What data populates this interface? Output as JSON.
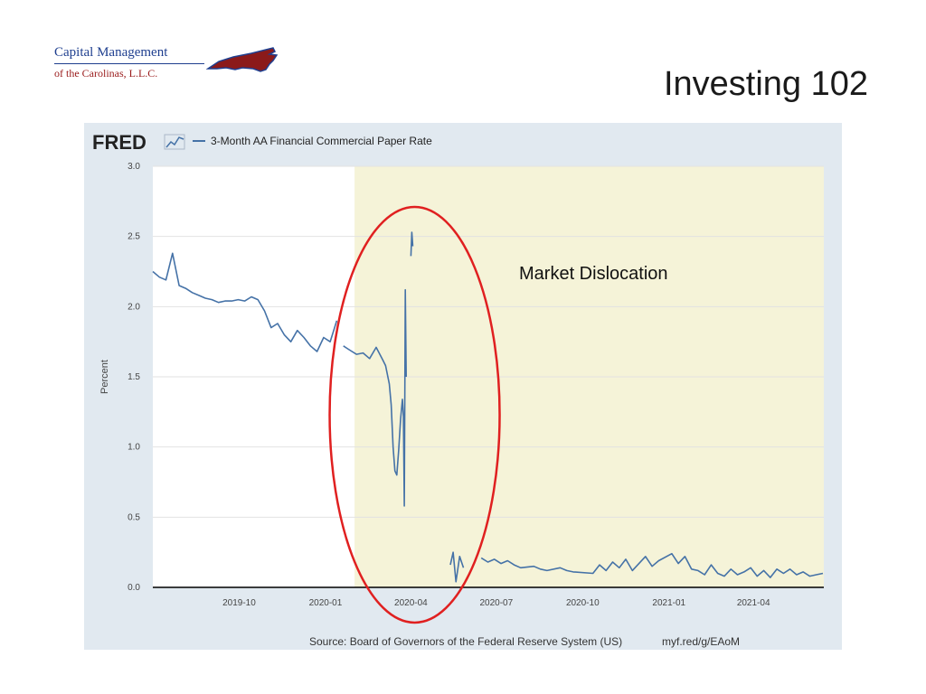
{
  "logo": {
    "line1": "Capital Management",
    "line2": "of the Carolinas, L.L.C."
  },
  "slide": {
    "title": "Investing 102"
  },
  "chart_data": {
    "type": "line",
    "brand": "FRED",
    "title": "",
    "xlabel": "",
    "ylabel": "Percent",
    "ylim": [
      0,
      3
    ],
    "yticks": [
      "0.0",
      "0.5",
      "1.0",
      "1.5",
      "2.0",
      "2.5",
      "3.0"
    ],
    "xticks": [
      "2019-10",
      "2020-01",
      "2020-04",
      "2020-07",
      "2020-10",
      "2021-01",
      "2021-04"
    ],
    "grid": true,
    "legend": "top-left",
    "recession_shading": {
      "start": "2020-02",
      "end": "2021-06",
      "color": "#f5f3d8"
    },
    "series": [
      {
        "name": "3-Month AA Financial Commercial Paper Rate",
        "color": "#4572a7",
        "segments": [
          [
            [
              "2019-07-01",
              2.25
            ],
            [
              "2019-07-08",
              2.21
            ],
            [
              "2019-07-15",
              2.19
            ],
            [
              "2019-07-22",
              2.38
            ],
            [
              "2019-07-29",
              2.15
            ],
            [
              "2019-08-05",
              2.13
            ],
            [
              "2019-08-12",
              2.1
            ],
            [
              "2019-08-19",
              2.08
            ],
            [
              "2019-08-26",
              2.06
            ],
            [
              "2019-09-02",
              2.05
            ],
            [
              "2019-09-09",
              2.03
            ],
            [
              "2019-09-16",
              2.04
            ],
            [
              "2019-09-23",
              2.04
            ],
            [
              "2019-09-30",
              2.05
            ],
            [
              "2019-10-07",
              2.04
            ],
            [
              "2019-10-14",
              2.07
            ],
            [
              "2019-10-21",
              2.05
            ],
            [
              "2019-10-28",
              1.97
            ],
            [
              "2019-11-04",
              1.85
            ],
            [
              "2019-11-11",
              1.88
            ],
            [
              "2019-11-18",
              1.8
            ],
            [
              "2019-11-25",
              1.75
            ],
            [
              "2019-12-02",
              1.83
            ],
            [
              "2019-12-09",
              1.78
            ],
            [
              "2019-12-16",
              1.72
            ],
            [
              "2019-12-23",
              1.68
            ],
            [
              "2019-12-30",
              1.78
            ],
            [
              "2020-01-06",
              1.75
            ],
            [
              "2020-01-13",
              1.9
            ]
          ],
          [
            [
              "2020-01-20",
              1.72
            ],
            [
              "2020-01-27",
              1.69
            ],
            [
              "2020-02-03",
              1.66
            ],
            [
              "2020-02-10",
              1.67
            ],
            [
              "2020-02-17",
              1.63
            ],
            [
              "2020-02-24",
              1.71
            ],
            [
              "2020-03-02",
              1.62
            ],
            [
              "2020-03-05",
              1.58
            ],
            [
              "2020-03-09",
              1.45
            ],
            [
              "2020-03-11",
              1.3
            ],
            [
              "2020-03-13",
              1.0
            ],
            [
              "2020-03-15",
              0.83
            ],
            [
              "2020-03-17",
              0.8
            ],
            [
              "2020-03-19",
              0.98
            ],
            [
              "2020-03-21",
              1.2
            ],
            [
              "2020-03-23",
              1.34
            ],
            [
              "2020-03-24",
              1.22
            ],
            [
              "2020-03-25",
              0.58
            ],
            [
              "2020-03-26",
              2.12
            ],
            [
              "2020-03-27",
              1.5
            ]
          ],
          [
            [
              "2020-04-01",
              2.36
            ],
            [
              "2020-04-02",
              2.53
            ],
            [
              "2020-04-03",
              2.43
            ]
          ],
          [
            [
              "2020-05-13",
              0.16
            ],
            [
              "2020-05-16",
              0.25
            ],
            [
              "2020-05-19",
              0.04
            ],
            [
              "2020-05-23",
              0.22
            ],
            [
              "2020-05-27",
              0.14
            ]
          ],
          [
            [
              "2020-06-15",
              0.21
            ],
            [
              "2020-06-22",
              0.18
            ],
            [
              "2020-06-29",
              0.2
            ],
            [
              "2020-07-06",
              0.17
            ],
            [
              "2020-07-13",
              0.19
            ],
            [
              "2020-07-20",
              0.16
            ],
            [
              "2020-07-27",
              0.14
            ],
            [
              "2020-08-10",
              0.15
            ],
            [
              "2020-08-17",
              0.13
            ],
            [
              "2020-08-24",
              0.12
            ],
            [
              "2020-09-07",
              0.14
            ],
            [
              "2020-09-14",
              0.12
            ],
            [
              "2020-09-21",
              0.11
            ],
            [
              "2020-10-12",
              0.1
            ],
            [
              "2020-10-19",
              0.16
            ],
            [
              "2020-10-26",
              0.12
            ],
            [
              "2020-11-02",
              0.18
            ],
            [
              "2020-11-09",
              0.14
            ],
            [
              "2020-11-16",
              0.2
            ],
            [
              "2020-11-23",
              0.12
            ],
            [
              "2020-12-07",
              0.22
            ],
            [
              "2020-12-14",
              0.15
            ],
            [
              "2020-12-21",
              0.19
            ],
            [
              "2021-01-04",
              0.24
            ],
            [
              "2021-01-11",
              0.17
            ],
            [
              "2021-01-18",
              0.22
            ],
            [
              "2021-01-25",
              0.13
            ],
            [
              "2021-02-01",
              0.12
            ],
            [
              "2021-02-08",
              0.09
            ],
            [
              "2021-02-15",
              0.16
            ],
            [
              "2021-02-22",
              0.1
            ],
            [
              "2021-03-01",
              0.08
            ],
            [
              "2021-03-08",
              0.13
            ],
            [
              "2021-03-15",
              0.09
            ],
            [
              "2021-03-22",
              0.11
            ],
            [
              "2021-03-29",
              0.14
            ],
            [
              "2021-04-05",
              0.08
            ],
            [
              "2021-04-12",
              0.12
            ],
            [
              "2021-04-19",
              0.07
            ],
            [
              "2021-04-26",
              0.13
            ],
            [
              "2021-05-03",
              0.1
            ],
            [
              "2021-05-10",
              0.13
            ],
            [
              "2021-05-17",
              0.09
            ],
            [
              "2021-05-24",
              0.11
            ],
            [
              "2021-05-31",
              0.08
            ],
            [
              "2021-06-07",
              0.09
            ],
            [
              "2021-06-14",
              0.1
            ]
          ]
        ]
      }
    ],
    "annotation": {
      "text": "Market Dislocation",
      "circle_color": "#e02020",
      "circle_center": [
        "2020-04-05",
        1.23
      ]
    },
    "source": "Source: Board of Governors of the Federal Reserve System (US)",
    "link": "myf.red/g/EAoM"
  }
}
